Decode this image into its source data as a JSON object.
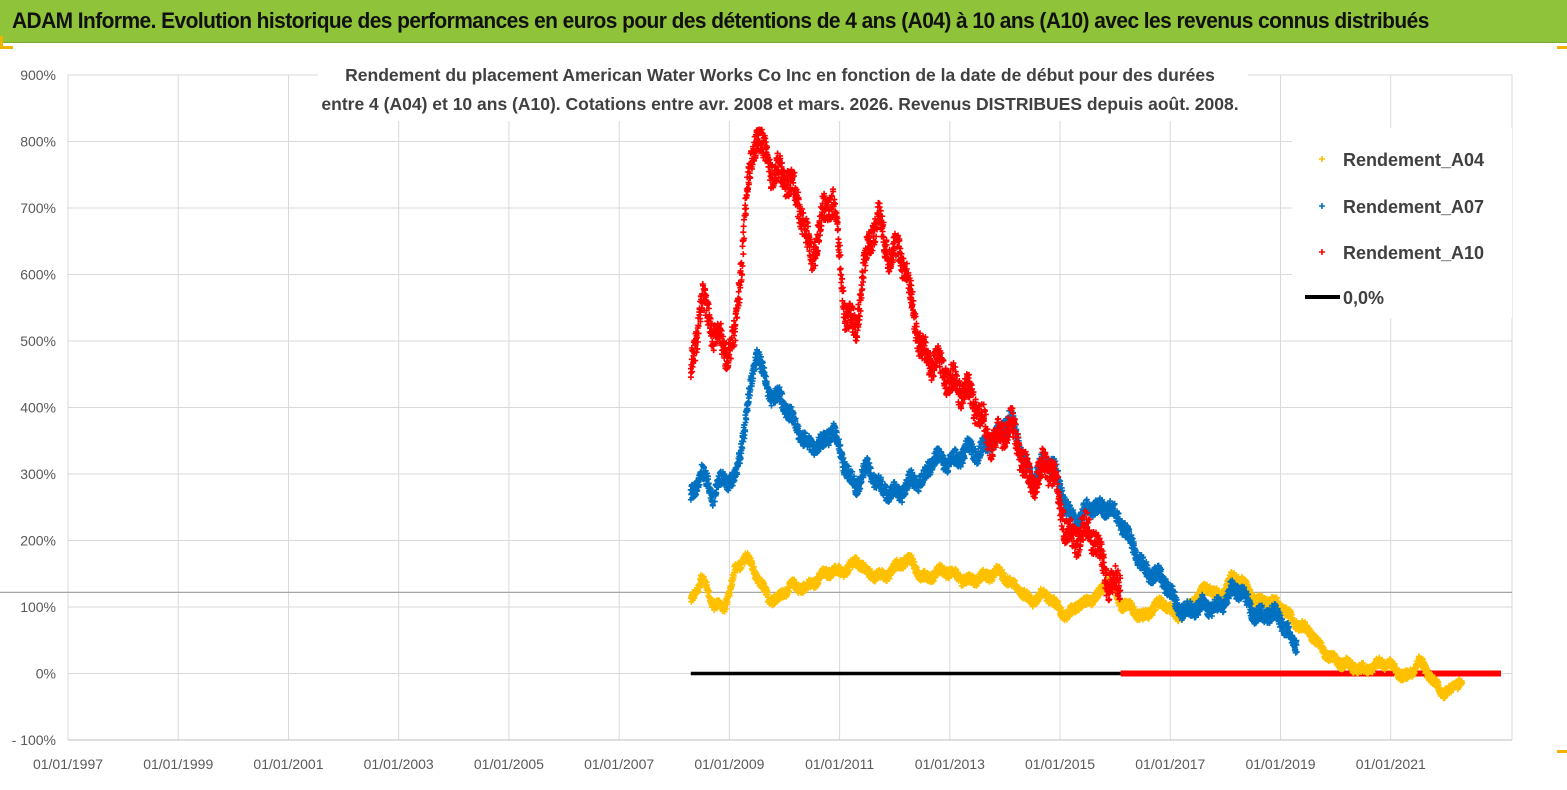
{
  "header": {
    "title": "ADAM Informe. Evolution historique des performances en euros pour des détentions de 4 ans (A04) à 10 ans (A10) avec les revenus connus distribués"
  },
  "colors": {
    "header_bg": "#8fc33a",
    "a04": "#ffc000",
    "a07": "#0070c0",
    "a10": "#ff0000",
    "zero": "#000000",
    "grid": "#d9d9d9"
  },
  "chart_data": {
    "type": "scatter",
    "title_line1": "Rendement du placement American Water Works Co Inc en fonction de la date de début pour des durées",
    "title_line2": "entre 4 (A04) et 10 ans (A10). Cotations entre avr. 2008 et mars. 2026. Revenus DISTRIBUES depuis août. 2008.",
    "xlabel": "",
    "ylabel": "",
    "xlim": [
      1997.0,
      2023.2
    ],
    "ylim": [
      -100,
      900
    ],
    "y_ticks": [
      -100,
      0,
      100,
      200,
      300,
      400,
      500,
      600,
      700,
      800,
      900
    ],
    "y_tick_labels": [
      "- 100%",
      "0%",
      "100%",
      "200%",
      "300%",
      "400%",
      "500%",
      "600%",
      "700%",
      "800%",
      "900%"
    ],
    "x_ticks": [
      1997,
      1999,
      2001,
      2003,
      2005,
      2007,
      2009,
      2011,
      2013,
      2015,
      2017,
      2019,
      2021
    ],
    "x_tick_labels": [
      "01/01/1997",
      "01/01/1999",
      "01/01/2001",
      "01/01/2003",
      "01/01/2005",
      "01/01/2007",
      "01/01/2009",
      "01/01/2011",
      "01/01/2013",
      "01/01/2015",
      "01/01/2017",
      "01/01/2019",
      "01/01/2021"
    ],
    "reference_line": 122,
    "legend_position": "top-right",
    "series": [
      {
        "name": "Rendement_A04",
        "marker": "+",
        "x": [
          2008.3,
          2008.5,
          2008.7,
          2008.9,
          2009.1,
          2009.3,
          2009.5,
          2009.7,
          2009.9,
          2010.1,
          2010.3,
          2010.5,
          2010.7,
          2010.9,
          2011.1,
          2011.3,
          2011.5,
          2011.7,
          2011.9,
          2012.1,
          2012.3,
          2012.5,
          2012.7,
          2012.9,
          2013.1,
          2013.3,
          2013.5,
          2013.7,
          2013.9,
          2014.1,
          2014.3,
          2014.5,
          2014.7,
          2014.9,
          2015.1,
          2015.3,
          2015.5,
          2015.7,
          2015.9,
          2016.1,
          2016.3,
          2016.5,
          2016.7,
          2016.9,
          2017.1,
          2017.3,
          2017.5,
          2017.7,
          2017.9,
          2018.1,
          2018.3,
          2018.5,
          2018.7,
          2018.9,
          2019.1,
          2019.3,
          2019.5,
          2019.7,
          2019.9,
          2020.1,
          2020.3,
          2020.5,
          2020.7,
          2020.9,
          2021.1,
          2021.3,
          2021.5,
          2021.7,
          2021.9,
          2022.1,
          2022.3
        ],
        "y": [
          110,
          150,
          100,
          95,
          160,
          175,
          140,
          120,
          115,
          125,
          130,
          140,
          145,
          150,
          160,
          170,
          145,
          150,
          155,
          160,
          170,
          150,
          145,
          150,
          155,
          140,
          135,
          150,
          160,
          130,
          120,
          115,
          120,
          100,
          90,
          105,
          100,
          120,
          150,
          100,
          95,
          90,
          100,
          100,
          90,
          100,
          110,
          130,
          120,
          140,
          135,
          120,
          110,
          100,
          95,
          80,
          60,
          40,
          30,
          15,
          5,
          10,
          15,
          10,
          5,
          0,
          15,
          -5,
          -20,
          -25,
          -15
        ]
      },
      {
        "name": "Rendement_A07",
        "marker": "+",
        "x": [
          2008.3,
          2008.5,
          2008.7,
          2008.9,
          2009.1,
          2009.3,
          2009.5,
          2009.7,
          2009.9,
          2010.1,
          2010.3,
          2010.5,
          2010.7,
          2010.9,
          2011.1,
          2011.3,
          2011.5,
          2011.7,
          2011.9,
          2012.1,
          2012.3,
          2012.5,
          2012.7,
          2012.9,
          2013.1,
          2013.3,
          2013.5,
          2013.7,
          2013.9,
          2014.1,
          2014.3,
          2014.5,
          2014.7,
          2014.9,
          2015.1,
          2015.3,
          2015.5,
          2015.7,
          2015.9,
          2016.1,
          2016.3,
          2016.5,
          2016.7,
          2016.9,
          2017.1,
          2017.3,
          2017.5,
          2017.7,
          2017.9,
          2018.1,
          2018.3,
          2018.5,
          2018.7,
          2018.9,
          2019.1,
          2019.3
        ],
        "y": [
          270,
          310,
          260,
          290,
          300,
          380,
          480,
          430,
          420,
          380,
          360,
          350,
          340,
          360,
          320,
          280,
          300,
          290,
          280,
          260,
          290,
          300,
          320,
          310,
          330,
          340,
          320,
          350,
          370,
          380,
          330,
          300,
          320,
          300,
          260,
          230,
          240,
          250,
          260,
          220,
          190,
          170,
          150,
          130,
          110,
          100,
          90,
          100,
          110,
          120,
          115,
          100,
          90,
          80,
          70,
          50
        ]
      },
      {
        "name": "Rendement_A10",
        "marker": "+",
        "x": [
          2008.3,
          2008.5,
          2008.7,
          2008.9,
          2009.1,
          2009.3,
          2009.5,
          2009.7,
          2009.9,
          2010.1,
          2010.3,
          2010.5,
          2010.7,
          2010.9,
          2011.1,
          2011.3,
          2011.5,
          2011.7,
          2011.9,
          2012.1,
          2012.3,
          2012.5,
          2012.7,
          2012.9,
          2013.1,
          2013.3,
          2013.5,
          2013.7,
          2013.9,
          2014.1,
          2014.3,
          2014.5,
          2014.7,
          2014.9,
          2015.1,
          2015.3,
          2015.5,
          2015.7,
          2015.9,
          2016.1
        ],
        "y": [
          460,
          580,
          500,
          480,
          520,
          700,
          800,
          780,
          760,
          720,
          700,
          640,
          680,
          700,
          560,
          520,
          620,
          700,
          640,
          620,
          560,
          500,
          460,
          440,
          450,
          430,
          380,
          360,
          370,
          360,
          320,
          300,
          310,
          280,
          230,
          210,
          200,
          190,
          150,
          125
        ]
      },
      {
        "name": "0,0%",
        "marker": "line",
        "x": [
          2008.3,
          2016.1
        ],
        "y": [
          0,
          0
        ]
      }
    ],
    "a10_zero_segment": {
      "x_start": 2016.1,
      "x_end": 2023.0,
      "y": 0
    }
  }
}
